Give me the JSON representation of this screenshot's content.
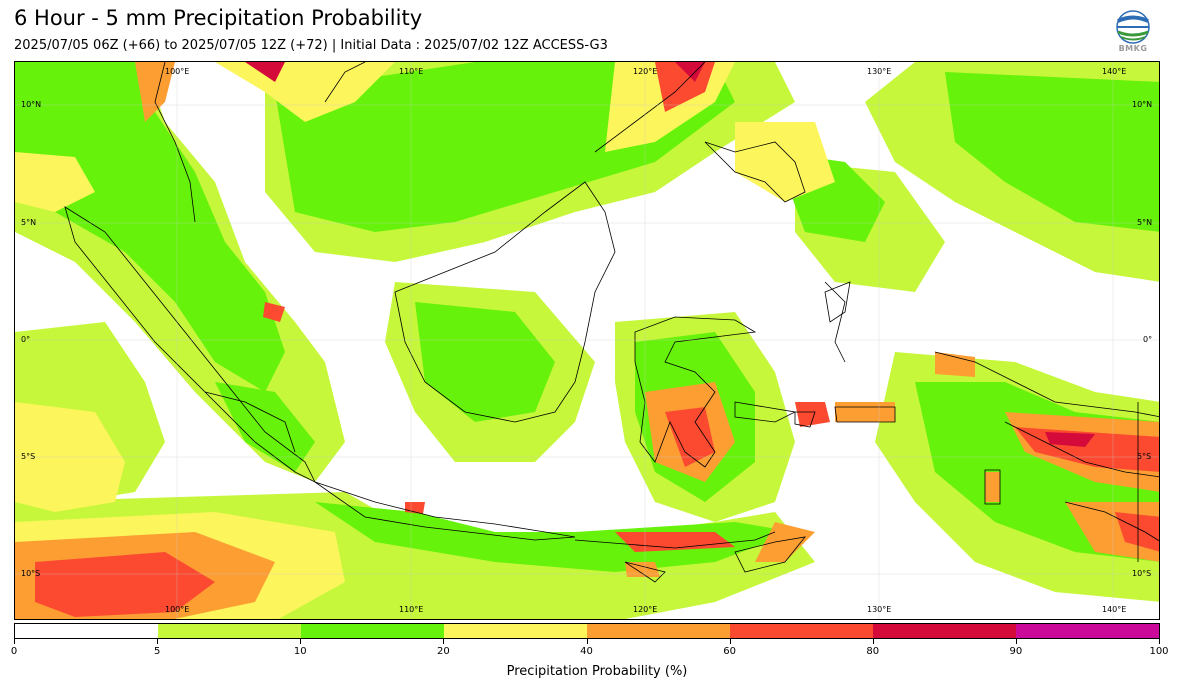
{
  "header": {
    "title": "6 Hour - 5 mm Precipitation Probability",
    "subtitle": "2025/07/05 06Z (+66) to 2025/07/05 12Z (+72) | Initial Data : 2025/07/02 12Z ACCESS-G3",
    "logo_text": "BMKG",
    "logo_icon": "bmkg-globe-icon"
  },
  "map": {
    "lon_labels": [
      "100°E",
      "110°E",
      "120°E",
      "130°E",
      "140°E"
    ],
    "lat_labels": [
      "10°N",
      "5°N",
      "0°",
      "5°S",
      "10°S"
    ],
    "extent": {
      "lon": [
        94,
        143
      ],
      "lat": [
        -11.8,
        12
      ]
    }
  },
  "colorbar": {
    "title": "Precipitation Probability (%)",
    "ticks": [
      "0",
      "5",
      "10",
      "20",
      "40",
      "60",
      "80",
      "90",
      "100"
    ],
    "colors": [
      "#ffffff",
      "#c6f73b",
      "#66f20a",
      "#fcf55c",
      "#fd9e33",
      "#fb4a30",
      "#d30a3a",
      "#cc0a9a"
    ]
  }
}
